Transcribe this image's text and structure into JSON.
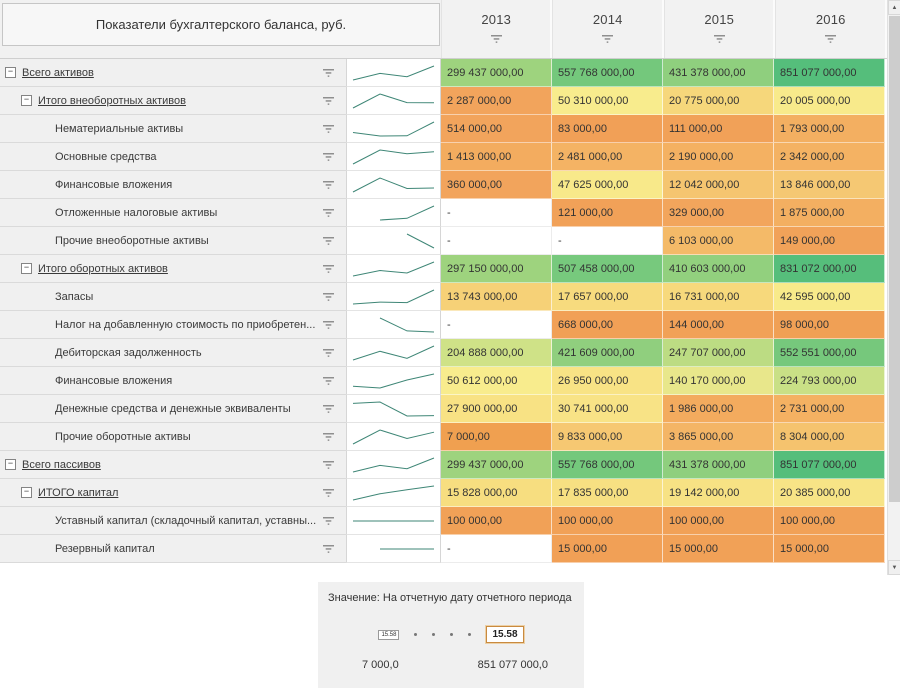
{
  "header": {
    "title": "Показатели бухгалтерского баланса, руб.",
    "years": [
      "2013",
      "2014",
      "2015",
      "2016"
    ]
  },
  "icons": {
    "arrow_up": "▲",
    "arrow_down": "▼",
    "collapse_glyph": "−",
    "filter_icon_name": "filter-funnel-icon"
  },
  "colors": {
    "sparkline": "#3E8676",
    "empty_cell": "#FFFFFF",
    "label_bg": "#F0F0F0",
    "header_bg": "#F2F2F2"
  },
  "legend": {
    "title": "Значение: На отчетную дату отчетного периода",
    "box_value": "15.58",
    "box_value_selected": "15.58",
    "min_label": "7 000,0",
    "max_label": "851 077 000,0"
  },
  "rows": [
    {
      "label": "Всего активов",
      "level": 0,
      "group": true,
      "expander": true,
      "values": [
        {
          "t": "299 437 000,00",
          "c": "#9ED37E"
        },
        {
          "t": "557 768 000,00",
          "c": "#74C87C"
        },
        {
          "t": "431 378 000,00",
          "c": "#8FCF7E"
        },
        {
          "t": "851 077 000,00",
          "c": "#55BE7B"
        }
      ]
    },
    {
      "label": "Итого внеоборотных активов",
      "level": 1,
      "group": true,
      "expander": true,
      "values": [
        {
          "t": "2 287 000,00",
          "c": "#F2A45C"
        },
        {
          "t": "50 310 000,00",
          "c": "#F8EC8D"
        },
        {
          "t": "20 775 000,00",
          "c": "#F6D77B"
        },
        {
          "t": "20 005 000,00",
          "c": "#F8EA8B"
        }
      ]
    },
    {
      "label": "Нематериальные активы",
      "level": 2,
      "group": false,
      "expander": false,
      "values": [
        {
          "t": "514 000,00",
          "c": "#F2A45C"
        },
        {
          "t": "83 000,00",
          "c": "#F1A057"
        },
        {
          "t": "111 000,00",
          "c": "#F1A158"
        },
        {
          "t": "1 793 000,00",
          "c": "#F3AF61"
        }
      ]
    },
    {
      "label": "Основные средства",
      "level": 2,
      "group": false,
      "expander": false,
      "values": [
        {
          "t": "1 413 000,00",
          "c": "#F3AC5F"
        },
        {
          "t": "2 481 000,00",
          "c": "#F4B364"
        },
        {
          "t": "2 190 000,00",
          "c": "#F4B162"
        },
        {
          "t": "2 342 000,00",
          "c": "#F4B263"
        }
      ]
    },
    {
      "label": "Финансовые вложения",
      "level": 2,
      "group": false,
      "expander": false,
      "values": [
        {
          "t": "360 000,00",
          "c": "#F2A45C"
        },
        {
          "t": "47 625 000,00",
          "c": "#F8E98A"
        },
        {
          "t": "12 042 000,00",
          "c": "#F5C570"
        },
        {
          "t": "13 846 000,00",
          "c": "#F5C873"
        }
      ]
    },
    {
      "label": "Отложенные налоговые активы",
      "level": 2,
      "group": false,
      "expander": false,
      "values": [
        {
          "t": "-",
          "c": ""
        },
        {
          "t": "121 000,00",
          "c": "#F1A158"
        },
        {
          "t": "329 000,00",
          "c": "#F2A55C"
        },
        {
          "t": "1 875 000,00",
          "c": "#F3AF61"
        }
      ]
    },
    {
      "label": "Прочие внеоборотные активы",
      "level": 2,
      "group": false,
      "expander": false,
      "values": [
        {
          "t": "-",
          "c": ""
        },
        {
          "t": "-",
          "c": ""
        },
        {
          "t": "6 103 000,00",
          "c": "#F4BA68"
        },
        {
          "t": "149 000,00",
          "c": "#F1A259"
        }
      ]
    },
    {
      "label": "Итого оборотных активов",
      "level": 1,
      "group": true,
      "expander": true,
      "values": [
        {
          "t": "297 150 000,00",
          "c": "#9ED37E"
        },
        {
          "t": "507 458 000,00",
          "c": "#77C97D"
        },
        {
          "t": "410 603 000,00",
          "c": "#92D07E"
        },
        {
          "t": "831 072 000,00",
          "c": "#56BE7B"
        }
      ]
    },
    {
      "label": "Запасы",
      "level": 2,
      "group": false,
      "expander": false,
      "values": [
        {
          "t": "13 743 000,00",
          "c": "#F6D177"
        },
        {
          "t": "17 657 000,00",
          "c": "#F7DB7E"
        },
        {
          "t": "16 731 000,00",
          "c": "#F7D97C"
        },
        {
          "t": "42 595 000,00",
          "c": "#F8EA8A"
        }
      ]
    },
    {
      "label": "Налог на добавленную стоимость по приобретен...",
      "level": 2,
      "group": false,
      "expander": false,
      "values": [
        {
          "t": "-",
          "c": ""
        },
        {
          "t": "668 000,00",
          "c": "#F1A056"
        },
        {
          "t": "144 000,00",
          "c": "#F1A157"
        },
        {
          "t": "98 000,00",
          "c": "#F0A055"
        }
      ]
    },
    {
      "label": "Дебиторская задолженность",
      "level": 2,
      "group": false,
      "expander": false,
      "values": [
        {
          "t": "204 888 000,00",
          "c": "#CFE287"
        },
        {
          "t": "421 609 000,00",
          "c": "#90CF7E"
        },
        {
          "t": "247 707 000,00",
          "c": "#BCDC83"
        },
        {
          "t": "552 551 000,00",
          "c": "#76C87C"
        }
      ]
    },
    {
      "label": "Финансовые вложения",
      "level": 2,
      "group": false,
      "expander": false,
      "values": [
        {
          "t": "50 612 000,00",
          "c": "#F8EC8D"
        },
        {
          "t": "26 950 000,00",
          "c": "#F8E385"
        },
        {
          "t": "140 170 000,00",
          "c": "#E8E78B"
        },
        {
          "t": "224 793 000,00",
          "c": "#C9E086"
        }
      ]
    },
    {
      "label": "Денежные средства и денежные эквиваленты",
      "level": 2,
      "group": false,
      "expander": false,
      "values": [
        {
          "t": "27 900 000,00",
          "c": "#F8E284"
        },
        {
          "t": "30 741 000,00",
          "c": "#F8E386"
        },
        {
          "t": "1 986 000,00",
          "c": "#F3AB5E"
        },
        {
          "t": "2 731 000,00",
          "c": "#F4B162"
        }
      ]
    },
    {
      "label": "Прочие оборотные активы",
      "level": 2,
      "group": false,
      "expander": false,
      "values": [
        {
          "t": "7 000,00",
          "c": "#F0A050"
        },
        {
          "t": "9 833 000,00",
          "c": "#F6C872"
        },
        {
          "t": "3 865 000,00",
          "c": "#F4B566"
        },
        {
          "t": "8 304 000,00",
          "c": "#F5C36E"
        }
      ]
    },
    {
      "label": "Всего пассивов",
      "level": 0,
      "group": true,
      "expander": true,
      "values": [
        {
          "t": "299 437 000,00",
          "c": "#9ED37E"
        },
        {
          "t": "557 768 000,00",
          "c": "#74C87C"
        },
        {
          "t": "431 378 000,00",
          "c": "#8FCF7E"
        },
        {
          "t": "851 077 000,00",
          "c": "#55BE7B"
        }
      ]
    },
    {
      "label": "ИТОГО капитал",
      "level": 1,
      "group": true,
      "expander": true,
      "values": [
        {
          "t": "15 828 000,00",
          "c": "#F7DE80"
        },
        {
          "t": "17 835 000,00",
          "c": "#F7E082"
        },
        {
          "t": "19 142 000,00",
          "c": "#F7E284"
        },
        {
          "t": "20 385 000,00",
          "c": "#F7E486"
        }
      ]
    },
    {
      "label": "Уставный капитал (складочный капитал, уставны...",
      "level": 2,
      "group": false,
      "expander": false,
      "values": [
        {
          "t": "100 000,00",
          "c": "#F1A157"
        },
        {
          "t": "100 000,00",
          "c": "#F1A157"
        },
        {
          "t": "100 000,00",
          "c": "#F1A157"
        },
        {
          "t": "100 000,00",
          "c": "#F1A157"
        }
      ]
    },
    {
      "label": "Резервный капитал",
      "level": 2,
      "group": false,
      "expander": false,
      "values": [
        {
          "t": "-",
          "c": ""
        },
        {
          "t": "15 000,00",
          "c": "#F1A056"
        },
        {
          "t": "15 000,00",
          "c": "#F1A157"
        },
        {
          "t": "15 000,00",
          "c": "#F1A157"
        }
      ]
    }
  ]
}
